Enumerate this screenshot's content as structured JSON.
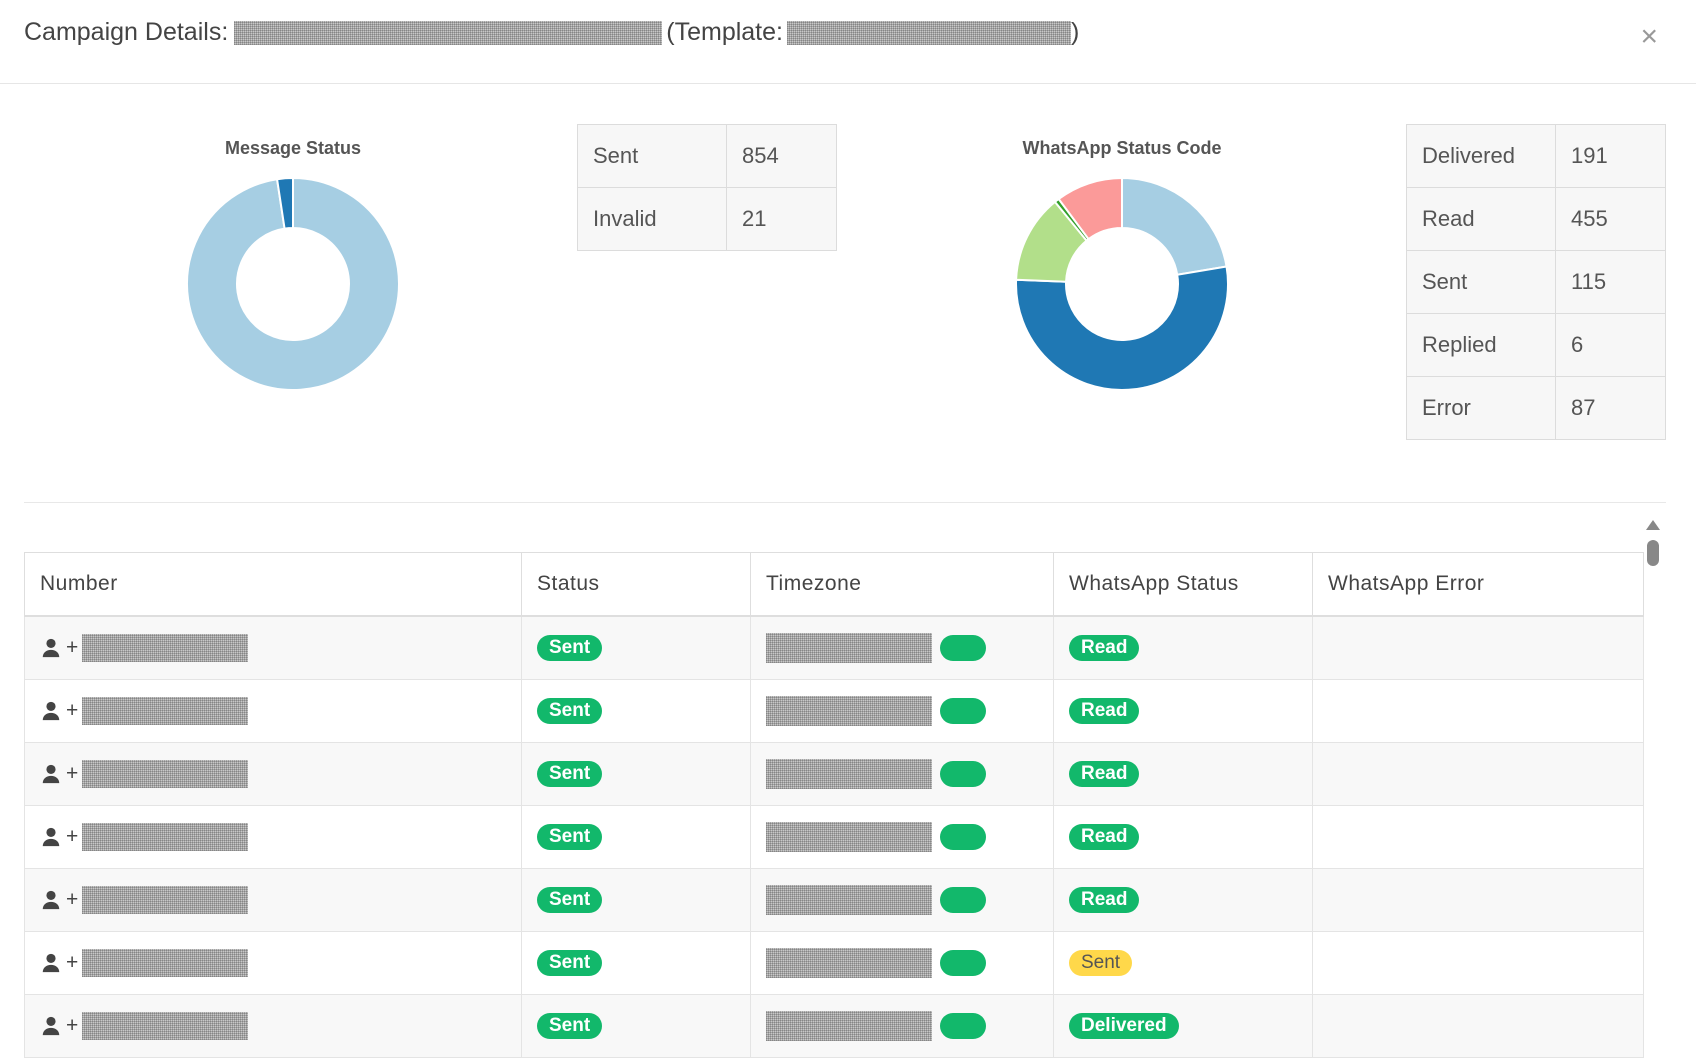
{
  "header": {
    "title_prefix": "Campaign Details:",
    "template_prefix": "(Template:",
    "template_suffix": ")"
  },
  "message_status": {
    "title": "Message Status",
    "rows": [
      {
        "label": "Sent",
        "value": "854"
      },
      {
        "label": "Invalid",
        "value": "21"
      }
    ]
  },
  "whatsapp_status": {
    "title": "WhatsApp Status Code",
    "rows": [
      {
        "label": "Delivered",
        "value": "191"
      },
      {
        "label": "Read",
        "value": "455"
      },
      {
        "label": "Sent",
        "value": "115"
      },
      {
        "label": "Replied",
        "value": "6"
      },
      {
        "label": "Error",
        "value": "87"
      }
    ]
  },
  "chart_data": [
    {
      "type": "pie",
      "title": "Message Status",
      "categories": [
        "Sent",
        "Invalid"
      ],
      "values": [
        854,
        21
      ],
      "colors": [
        "#a6cee3",
        "#1f78b4"
      ],
      "donut": true
    },
    {
      "type": "pie",
      "title": "WhatsApp Status Code",
      "categories": [
        "Delivered",
        "Read",
        "Sent",
        "Replied",
        "Error"
      ],
      "values": [
        191,
        455,
        115,
        6,
        87
      ],
      "colors": [
        "#a6cee3",
        "#1f78b4",
        "#b2df8a",
        "#33a02c",
        "#fb9a99"
      ],
      "donut": true
    }
  ],
  "table": {
    "columns": [
      "Number",
      "Status",
      "Timezone",
      "WhatsApp Status",
      "WhatsApp Error"
    ],
    "number_prefix": "+",
    "rows": [
      {
        "status": "Sent",
        "wa_status": "Read",
        "wa_color": "green"
      },
      {
        "status": "Sent",
        "wa_status": "Read",
        "wa_color": "green"
      },
      {
        "status": "Sent",
        "wa_status": "Read",
        "wa_color": "green"
      },
      {
        "status": "Sent",
        "wa_status": "Read",
        "wa_color": "green"
      },
      {
        "status": "Sent",
        "wa_status": "Read",
        "wa_color": "green"
      },
      {
        "status": "Sent",
        "wa_status": "Sent",
        "wa_color": "yellow"
      },
      {
        "status": "Sent",
        "wa_status": "Delivered",
        "wa_color": "green"
      }
    ]
  },
  "icons": {
    "close": "×",
    "person": "person-icon"
  }
}
